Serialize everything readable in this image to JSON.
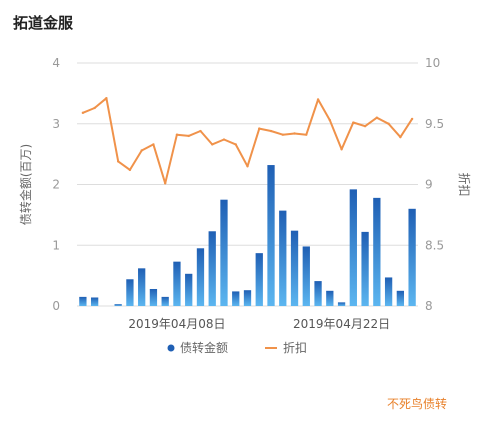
{
  "chart_data": {
    "title": "拓道金服",
    "type": "bar+line",
    "left_axis": {
      "label": "债转金额(百万)",
      "ticks": [
        "0",
        "1",
        "2",
        "3",
        "4"
      ],
      "range": [
        0,
        4
      ]
    },
    "right_axis": {
      "label": "折扣",
      "ticks": [
        "8",
        "8.5",
        "9",
        "9.5",
        "10"
      ],
      "range": [
        8,
        10
      ]
    },
    "x_ticks": [
      {
        "label": "2019年04月08日",
        "index": 8
      },
      {
        "label": "2019年04月22日",
        "index": 22
      }
    ],
    "series": [
      {
        "name": "债转金额",
        "type": "bar",
        "axis": "left",
        "values": [
          0.15,
          0.14,
          0,
          0.03,
          0.44,
          0.62,
          0.28,
          0.15,
          0.73,
          0.53,
          0.95,
          1.23,
          1.75,
          0.24,
          0.26,
          0.87,
          2.32,
          1.57,
          1.24,
          0.98,
          0.41,
          0.25,
          0.06,
          1.92,
          1.22,
          1.78,
          0.47,
          0.25,
          1.6
        ]
      },
      {
        "name": "折扣",
        "type": "line",
        "axis": "right",
        "values": [
          9.59,
          9.63,
          9.71,
          9.19,
          9.12,
          9.28,
          9.33,
          9.01,
          9.41,
          9.4,
          9.44,
          9.33,
          9.37,
          9.33,
          9.15,
          9.46,
          9.44,
          9.41,
          9.42,
          9.41,
          9.7,
          9.53,
          9.29,
          9.51,
          9.48,
          9.55,
          9.5,
          9.39,
          9.54
        ]
      }
    ],
    "colors": {
      "bar_top": "#1f5fb4",
      "bar_bottom": "#5cb6f0",
      "line": "#f0924a",
      "grid": "#dddddd",
      "axis_text": "#999999"
    }
  },
  "source_label": "不死鸟债转",
  "source_color": "#e8802a"
}
